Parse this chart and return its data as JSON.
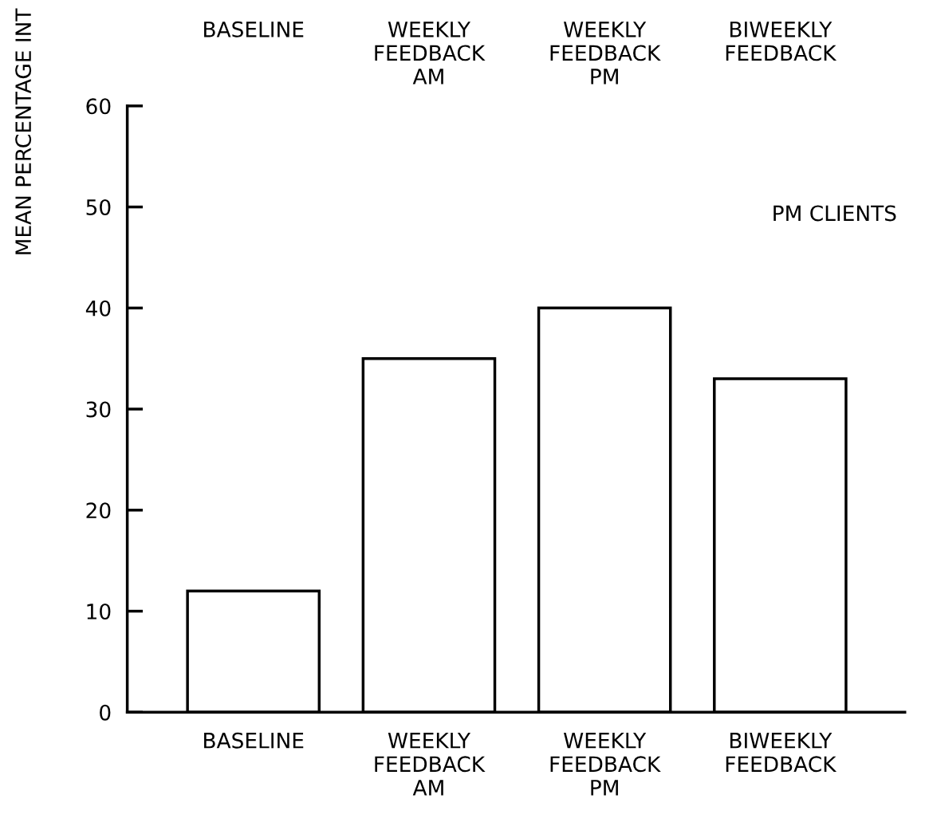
{
  "chart_data": {
    "type": "bar",
    "ylabel": "MEAN PERCENTAGE INT",
    "categories": [
      "BASELINE",
      "WEEKLY\nFEEDBACK\nAM",
      "WEEKLY\nFEEDBACK\nPM",
      "BIWEEKLY\nFEEDBACK"
    ],
    "values": [
      12,
      35,
      40,
      33
    ],
    "color": "#ffffff",
    "ylim": [
      0,
      60
    ],
    "yticks": [
      0,
      10,
      20,
      30,
      40,
      50,
      60
    ],
    "grid": false,
    "annotations": [
      "BASELINE",
      "WEEKLY\nFEEDBACK\nAM",
      "WEEKLY\nFEEDBACK\nPM",
      "BIWEEKLY\nFEEDBACK",
      "PM CLIENTS"
    ]
  }
}
